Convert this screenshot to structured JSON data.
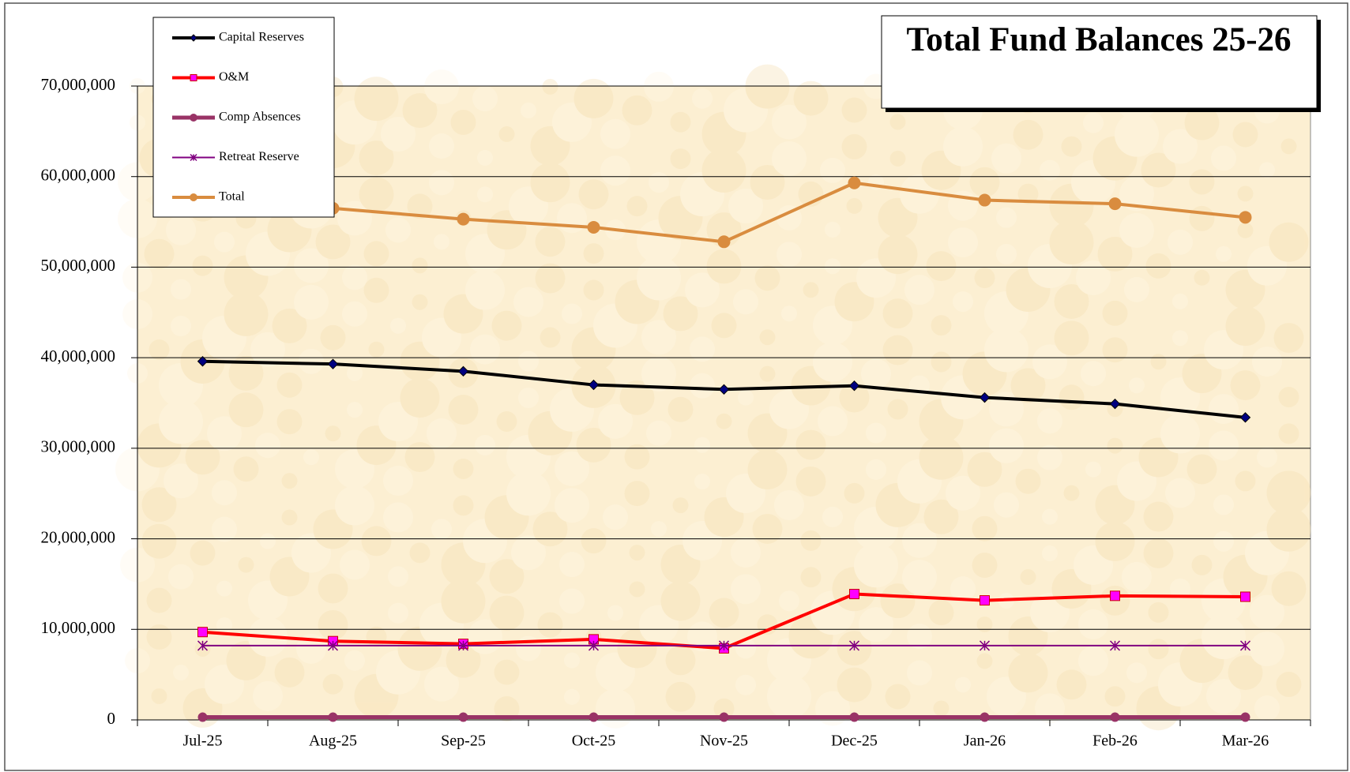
{
  "chart_data": {
    "type": "line",
    "title": "Total Fund Balances 25-26",
    "categories": [
      "Jul-25",
      "Aug-25",
      "Sep-25",
      "Oct-25",
      "Nov-25",
      "Dec-25",
      "Jan-26",
      "Feb-26",
      "Mar-26"
    ],
    "series": [
      {
        "name": "Capital Reserves",
        "color": "#000000",
        "marker": "diamond",
        "marker_color": "#000080",
        "values": [
          39600000,
          39300000,
          38500000,
          37000000,
          36500000,
          36900000,
          35600000,
          34900000,
          33400000
        ]
      },
      {
        "name": "O&M",
        "color": "#ff0000",
        "marker": "square",
        "marker_color": "#ff00ff",
        "values": [
          9700000,
          8700000,
          8400000,
          8900000,
          7900000,
          13900000,
          13200000,
          13700000,
          13600000
        ]
      },
      {
        "name": "Comp Absences",
        "color": "#993366",
        "marker": "circle",
        "marker_color": "#993366",
        "values": [
          300000,
          300000,
          300000,
          300000,
          300000,
          300000,
          300000,
          300000,
          300000
        ]
      },
      {
        "name": "Retreat Reserve",
        "color": "#800080",
        "marker": "star",
        "marker_color": "#800080",
        "values": [
          8200000,
          8200000,
          8200000,
          8200000,
          8200000,
          8200000,
          8200000,
          8200000,
          8200000
        ]
      },
      {
        "name": "Total",
        "color": "#d98c3f",
        "marker": "circle",
        "marker_color": "#d98c3f",
        "values": [
          57800000,
          56500000,
          55300000,
          54400000,
          52800000,
          59300000,
          57400000,
          57000000,
          55500000
        ]
      }
    ],
    "ylim": [
      0,
      70000000
    ],
    "yticks": [
      0,
      {
        "value": 10000000,
        "label": "10,000,000"
      },
      {
        "value": 20000000,
        "label": "20,000,000"
      },
      {
        "value": 30000000,
        "label": "30,000,000"
      },
      {
        "value": 40000000,
        "label": "40,000,000"
      },
      {
        "value": 50000000,
        "label": "50,000,000"
      },
      {
        "value": 60000000,
        "label": "60,000,000"
      },
      {
        "value": 70000000,
        "label": "70,000,000"
      }
    ],
    "grid": true,
    "legend": "top-left",
    "background": "#fcefd2"
  }
}
